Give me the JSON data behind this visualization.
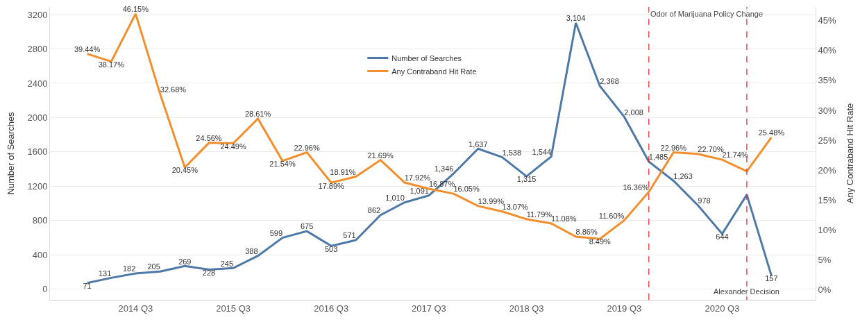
{
  "chart_data": {
    "type": "line",
    "x": [
      "2014-01",
      "2014-04",
      "2014-07",
      "2014-10",
      "2015-01",
      "2015-04",
      "2015-07",
      "2015-10",
      "2016-01",
      "2016-04",
      "2016-07",
      "2016-10",
      "2017-01",
      "2017-04",
      "2017-07",
      "2017-10",
      "2018-01",
      "2018-04",
      "2018-07",
      "2018-10",
      "2019-01",
      "2019-04",
      "2019-07",
      "2019-10",
      "2020-01",
      "2020-04",
      "2020-07",
      "2020-10",
      "2021-01"
    ],
    "xlim": [
      "2013-08-15",
      "2021-06-15"
    ],
    "xticks": [
      {
        "value": "2014-07",
        "label": "2014 Q3"
      },
      {
        "value": "2015-07",
        "label": "2015 Q3"
      },
      {
        "value": "2016-07",
        "label": "2016 Q3"
      },
      {
        "value": "2017-07",
        "label": "2017 Q3"
      },
      {
        "value": "2018-07",
        "label": "2018 Q3"
      },
      {
        "value": "2019-07",
        "label": "2019 Q3"
      },
      {
        "value": "2020-07",
        "label": "2020 Q3"
      }
    ],
    "ylabel": "Number of Searches",
    "y2label": "Any Contraband Hit Rate",
    "ylim": [
      -125,
      3290
    ],
    "yticks": [
      0,
      400,
      800,
      1200,
      1600,
      2000,
      2400,
      2800,
      3200
    ],
    "y2lim": [
      -1.7,
      47.3
    ],
    "y2ticks": [
      {
        "value": 0,
        "label": "0%"
      },
      {
        "value": 5,
        "label": "5%"
      },
      {
        "value": 10,
        "label": "10%"
      },
      {
        "value": 15,
        "label": "15%"
      },
      {
        "value": 20,
        "label": "20%"
      },
      {
        "value": 25,
        "label": "25%"
      },
      {
        "value": 30,
        "label": "30%"
      },
      {
        "value": 35,
        "label": "35%"
      },
      {
        "value": 40,
        "label": "40%"
      },
      {
        "value": 45,
        "label": "45%"
      }
    ],
    "series": [
      {
        "name": "Number of Searches",
        "color": "#4e79a7",
        "axis": "y",
        "values": [
          71,
          131,
          182,
          205,
          269,
          228,
          245,
          388,
          599,
          675,
          503,
          571,
          862,
          1010,
          1091,
          1346,
          1637,
          1538,
          1315,
          1544,
          3104,
          2368,
          2008,
          1485,
          1263,
          978,
          644,
          1100,
          157
        ],
        "value_labels": [
          "71",
          "131",
          "182",
          "205",
          "269",
          "228",
          "245",
          "388",
          "599",
          "675",
          "503",
          "571",
          "862",
          "1,010",
          "1,091",
          "1,346",
          "1,637",
          "1,538",
          "1,315",
          "1,544",
          "3,104",
          "2,368",
          "2,008",
          "1,485",
          "1,263",
          "978",
          "644",
          null,
          "157"
        ]
      },
      {
        "name": "Any Contraband Hit Rate",
        "color": "#f28e2b",
        "axis": "y2",
        "values": [
          39.44,
          38.17,
          46.15,
          32.68,
          20.45,
          24.56,
          24.49,
          28.61,
          21.54,
          22.96,
          17.89,
          18.91,
          21.69,
          17.92,
          16.87,
          16.05,
          13.99,
          13.07,
          11.79,
          11.08,
          8.86,
          8.49,
          11.6,
          16.36,
          22.96,
          22.7,
          21.74,
          19.8,
          25.48
        ],
        "value_labels": [
          "39.44%",
          "38.17%",
          "46.15%",
          "32.68%",
          "20.45%",
          "24.56%",
          "24.49%",
          "28.61%",
          "21.54%",
          "22.96%",
          "17.89%",
          "18.91%",
          "21.69%",
          "17.92%",
          "16.87%",
          "16.05%",
          "13.99%",
          "13.07%",
          "11.79%",
          "11.08%",
          "8.86%",
          "8.49%",
          "11.60%",
          "16.36%",
          "22.96%",
          "22.70%",
          "21.74%",
          null,
          "25.48%"
        ]
      }
    ],
    "ref_lines": [
      {
        "axis": "x",
        "value": "2019-10",
        "label": "Odor of Marijuana Policy Change",
        "color": "#e8202a",
        "line_style": "dashed"
      },
      {
        "axis": "x",
        "value": "2020-10",
        "label": "Alexander Decision",
        "color": "#e8202a",
        "line_style": "dashed"
      }
    ],
    "grid": "y",
    "legend": "top",
    "marker": "none",
    "line_style": "solid"
  }
}
